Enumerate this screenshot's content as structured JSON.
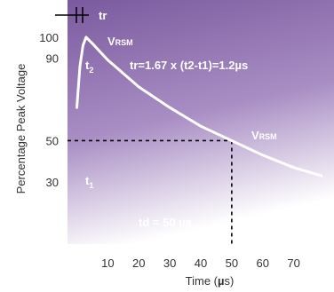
{
  "chart_data": {
    "type": "line",
    "series": [
      {
        "x": [
          0,
          1,
          2,
          3,
          5,
          10,
          20,
          30,
          40,
          50,
          60,
          70,
          79
        ],
        "y": [
          66,
          86,
          96,
          100,
          97,
          89,
          76,
          66,
          57,
          50,
          43,
          37,
          33
        ]
      }
    ],
    "xlim": [
      -3,
      83
    ],
    "ylim": [
      0,
      118
    ],
    "x_ticks": [
      "10",
      "20",
      "30",
      "40",
      "50",
      "60",
      "70"
    ],
    "x_tick_values": [
      10,
      20,
      30,
      40,
      50,
      60,
      70
    ],
    "y_ticks": [
      "100",
      "90",
      "50",
      "30"
    ],
    "y_tick_values": [
      100,
      90,
      50,
      30
    ],
    "xlabel_prefix": "Time (",
    "xlabel_mu": "µ",
    "xlabel_suffix": "s)",
    "ylabel": "Percentage Peak Voltage",
    "annotations": {
      "tr_marker": "tr",
      "t2": "t",
      "t2_sub": "2",
      "t1": "t",
      "t1_sub": "1",
      "vrsm_top": "V",
      "vrsm_top_sub": "RSM",
      "vrsm_right": "V",
      "vrsm_right_sub": "RSM",
      "tr_formula": "tr=1.67 x (t2-t1)=1.2µs",
      "td_label": "td = 50 µs"
    },
    "reference_lines": [
      {
        "type": "horizontal",
        "y": 50,
        "x_to": 50
      },
      {
        "type": "vertical",
        "x": 50,
        "y_from": 50
      },
      {
        "type": "vertical",
        "x": 1,
        "y_from": 0
      }
    ],
    "colors": {
      "bg_top": "#7a5a9e",
      "bg_bottom": "#ffffff",
      "curve": "#ffffff",
      "dashes": "#000000"
    }
  }
}
